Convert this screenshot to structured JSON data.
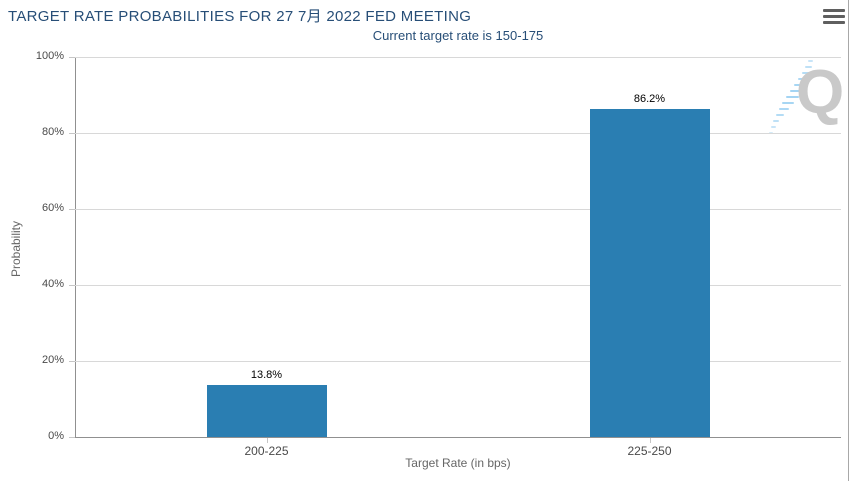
{
  "menu": {
    "icon": "hamburger-icon"
  },
  "watermark": {
    "letter": "Q"
  },
  "chart_data": {
    "type": "bar",
    "title": "TARGET RATE PROBABILITIES FOR 27 7月 2022 FED MEETING",
    "subtitle": "Current target rate is 150-175",
    "categories": [
      "200-225",
      "225-250"
    ],
    "values": [
      13.8,
      86.2
    ],
    "data_labels": [
      "13.8%",
      "86.2%"
    ],
    "xlabel": "Target Rate (in bps)",
    "ylabel": "Probability",
    "ylim": [
      0,
      100
    ],
    "ytick_step": 20,
    "ytick_labels": [
      "0%",
      "20%",
      "40%",
      "60%",
      "80%",
      "100%"
    ],
    "grid": true,
    "legend": "none",
    "colors": {
      "bar": "#2a7eb2",
      "title": "#274e77",
      "gridline": "#d8d8d8",
      "axis_line": "#909090",
      "tick_label": "#4a4a4a",
      "axis_title": "#666666",
      "watermark_q": "#c9c9c9",
      "watermark_dash": "#9fd2f2"
    }
  }
}
